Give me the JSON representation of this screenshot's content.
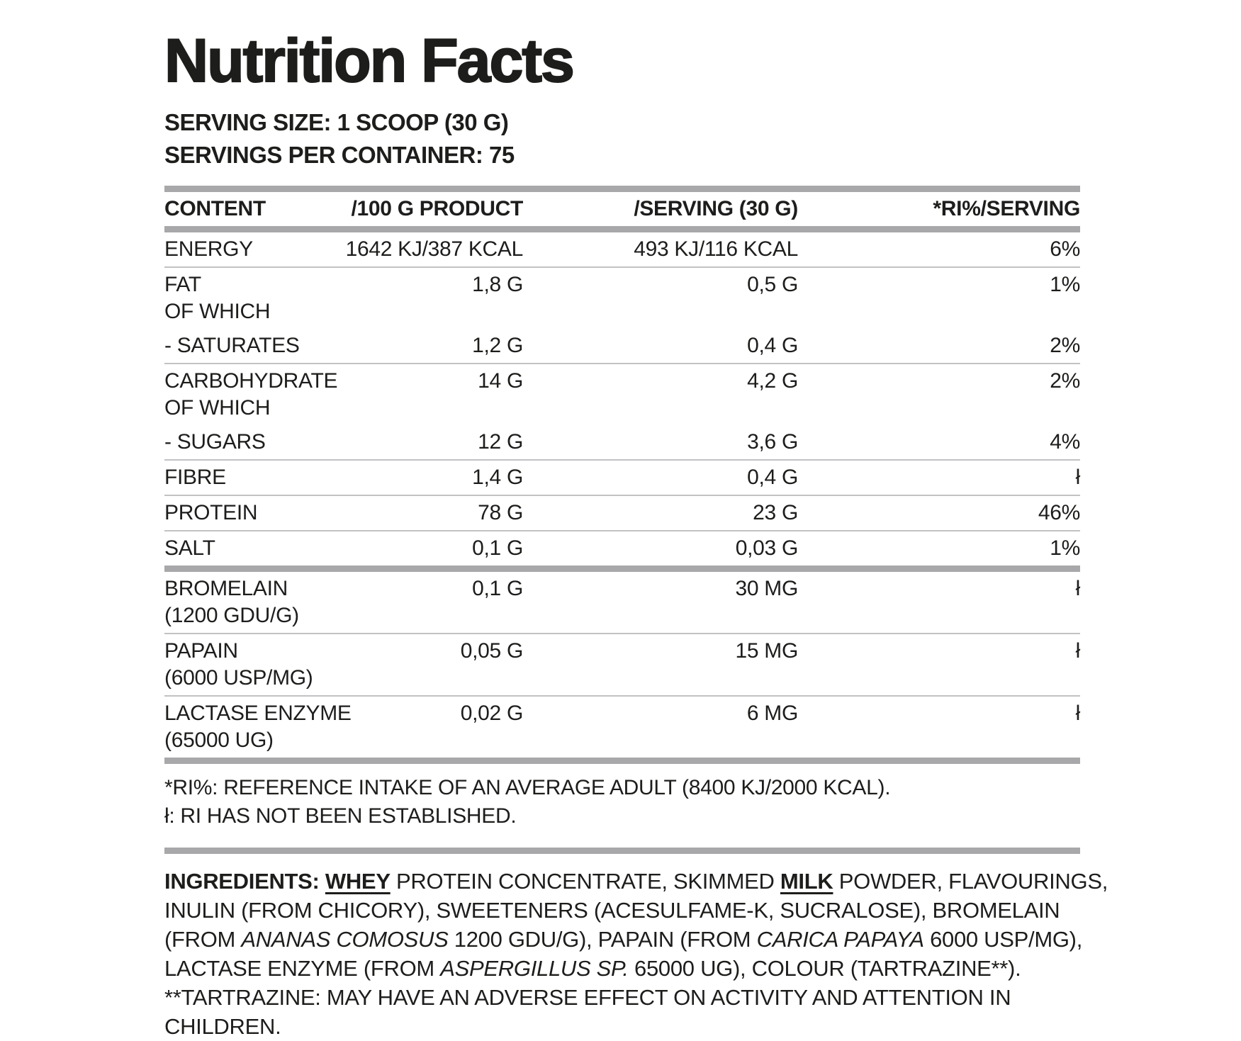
{
  "title": "Nutrition Facts",
  "serving_info": {
    "serving_size": "SERVING SIZE: 1 SCOOP (30 G)",
    "servings_per_container": "SERVINGS PER CONTAINER: 75"
  },
  "table": {
    "headers": [
      "CONTENT",
      "/100 G PRODUCT",
      "/SERVING (30 G)",
      "*RI%/SERVING"
    ],
    "rows": [
      {
        "label_lines": [
          "ENERGY"
        ],
        "per_100g": "1642 KJ/387 KCAL",
        "per_serving": "493 KJ/116 KCAL",
        "ri_percent": "6%",
        "divider_after": "thin"
      },
      {
        "label_lines": [
          "FAT",
          "OF WHICH"
        ],
        "per_100g": "1,8 G",
        "per_serving": "0,5 G",
        "ri_percent": "1%",
        "divider_after": "none"
      },
      {
        "label_lines": [
          "- SATURATES"
        ],
        "per_100g": "1,2 G",
        "per_serving": "0,4 G",
        "ri_percent": "2%",
        "divider_after": "thin"
      },
      {
        "label_lines": [
          "CARBOHYDRATE",
          "OF WHICH"
        ],
        "per_100g": "14 G",
        "per_serving": "4,2 G",
        "ri_percent": "2%",
        "divider_after": "none"
      },
      {
        "label_lines": [
          "- SUGARS"
        ],
        "per_100g": "12 G",
        "per_serving": "3,6 G",
        "ri_percent": "4%",
        "divider_after": "thin"
      },
      {
        "label_lines": [
          "FIBRE"
        ],
        "per_100g": "1,4 G",
        "per_serving": "0,4 G",
        "ri_percent": "ł",
        "divider_after": "thin"
      },
      {
        "label_lines": [
          "PROTEIN"
        ],
        "per_100g": "78 G",
        "per_serving": "23 G",
        "ri_percent": "46%",
        "divider_after": "thin"
      },
      {
        "label_lines": [
          "SALT"
        ],
        "per_100g": "0,1 G",
        "per_serving": "0,03 G",
        "ri_percent": "1%",
        "divider_after": "thick"
      },
      {
        "label_lines": [
          "BROMELAIN",
          "(1200 GDU/G)"
        ],
        "per_100g": "0,1 G",
        "per_serving": "30 MG",
        "ri_percent": "ł",
        "divider_after": "thin"
      },
      {
        "label_lines": [
          "PAPAIN",
          "(6000 USP/MG)"
        ],
        "per_100g": "0,05 G",
        "per_serving": "15 MG",
        "ri_percent": "ł",
        "divider_after": "thin"
      },
      {
        "label_lines": [
          "LACTASE ENZYME",
          "(65000 UG)"
        ],
        "per_100g": "0,02 G",
        "per_serving": "6 MG",
        "ri_percent": "ł",
        "divider_after": "thick"
      }
    ]
  },
  "footnotes": [
    "*RI%: REFERENCE INTAKE OF AN AVERAGE ADULT (8400 KJ/2000 KCAL).",
    "ł: RI HAS NOT BEEN ESTABLISHED."
  ],
  "ingredients": {
    "segments": [
      {
        "text": "INGREDIENTS: ",
        "bold": true
      },
      {
        "text": "WHEY",
        "bold": true,
        "underline": true
      },
      {
        "text": " PROTEIN CONCENTRATE, SKIMMED "
      },
      {
        "text": "MILK",
        "bold": true,
        "underline": true
      },
      {
        "text": " POWDER, FLAVOURINGS, INULIN (FROM CHICORY), SWEETENERS (ACESULFAME-K, SUCRALOSE), BROMELAIN (FROM "
      },
      {
        "text": "ANANAS COMOSUS",
        "italic": true
      },
      {
        "text": " 1200 GDU/G), PAPAIN (FROM "
      },
      {
        "text": "CARICA PAPAYA",
        "italic": true
      },
      {
        "text": " 6000 USP/MG), LACTASE ENZYME (FROM "
      },
      {
        "text": "ASPERGILLUS SP.",
        "italic": true
      },
      {
        "text": " 65000 UG), COLOUR (TARTRAZINE**)."
      }
    ],
    "tartrazine_note": "**TARTRAZINE: MAY HAVE AN ADVERSE EFFECT ON ACTIVITY AND ATTENTION IN CHILDREN."
  },
  "colors": {
    "background": "#ffffff",
    "text": "#1d1d1b",
    "section_bar": "#a8a8aa",
    "row_divider": "#c2c2c4"
  }
}
